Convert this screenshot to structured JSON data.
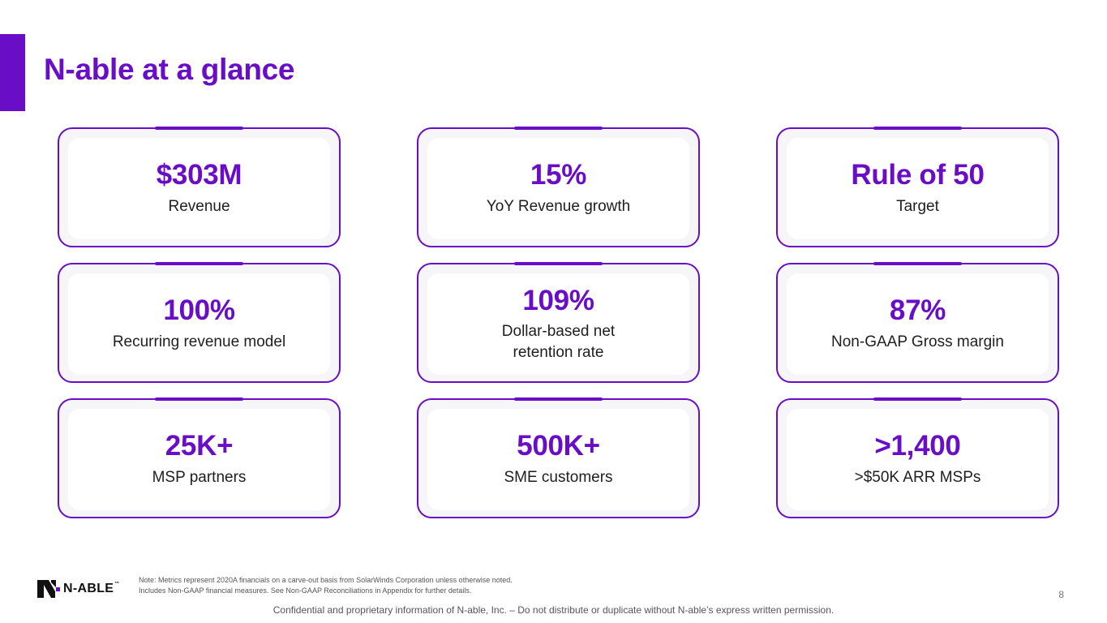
{
  "title": "N-able at a glance",
  "metrics": [
    {
      "value": "$303M",
      "label": "Revenue"
    },
    {
      "value": "15%",
      "label": "YoY Revenue growth"
    },
    {
      "value": "Rule of 50",
      "label": "Target"
    },
    {
      "value": "100%",
      "label": "Recurring revenue model"
    },
    {
      "value": "109%",
      "label": "Dollar-based net retention rate"
    },
    {
      "value": "87%",
      "label": "Non-GAAP Gross margin"
    },
    {
      "value": "25K+",
      "label": "MSP partners"
    },
    {
      "value": "500K+",
      "label": "SME customers"
    },
    {
      "value": ">1,400",
      "label": ">$50K ARR MSPs"
    }
  ],
  "footer": {
    "logo_text": "N-ABLE",
    "logo_tm": "™",
    "note_line1": "Note: Metrics represent 2020A financials on a carve-out basis from SolarWinds Corporation unless otherwise noted.",
    "note_line2": "Includes Non-GAAP financial measures. See Non-GAAP Reconciliations in Appendix for further details.",
    "page_number": "8",
    "confidential": "Confidential and proprietary information of N-able, Inc. – Do not distribute or duplicate without N-able’s express written permission."
  },
  "colors": {
    "accent": "#6a0dc6",
    "text": "#1e1e1e"
  },
  "icons": {
    "logo": "n-able-logo-icon"
  }
}
